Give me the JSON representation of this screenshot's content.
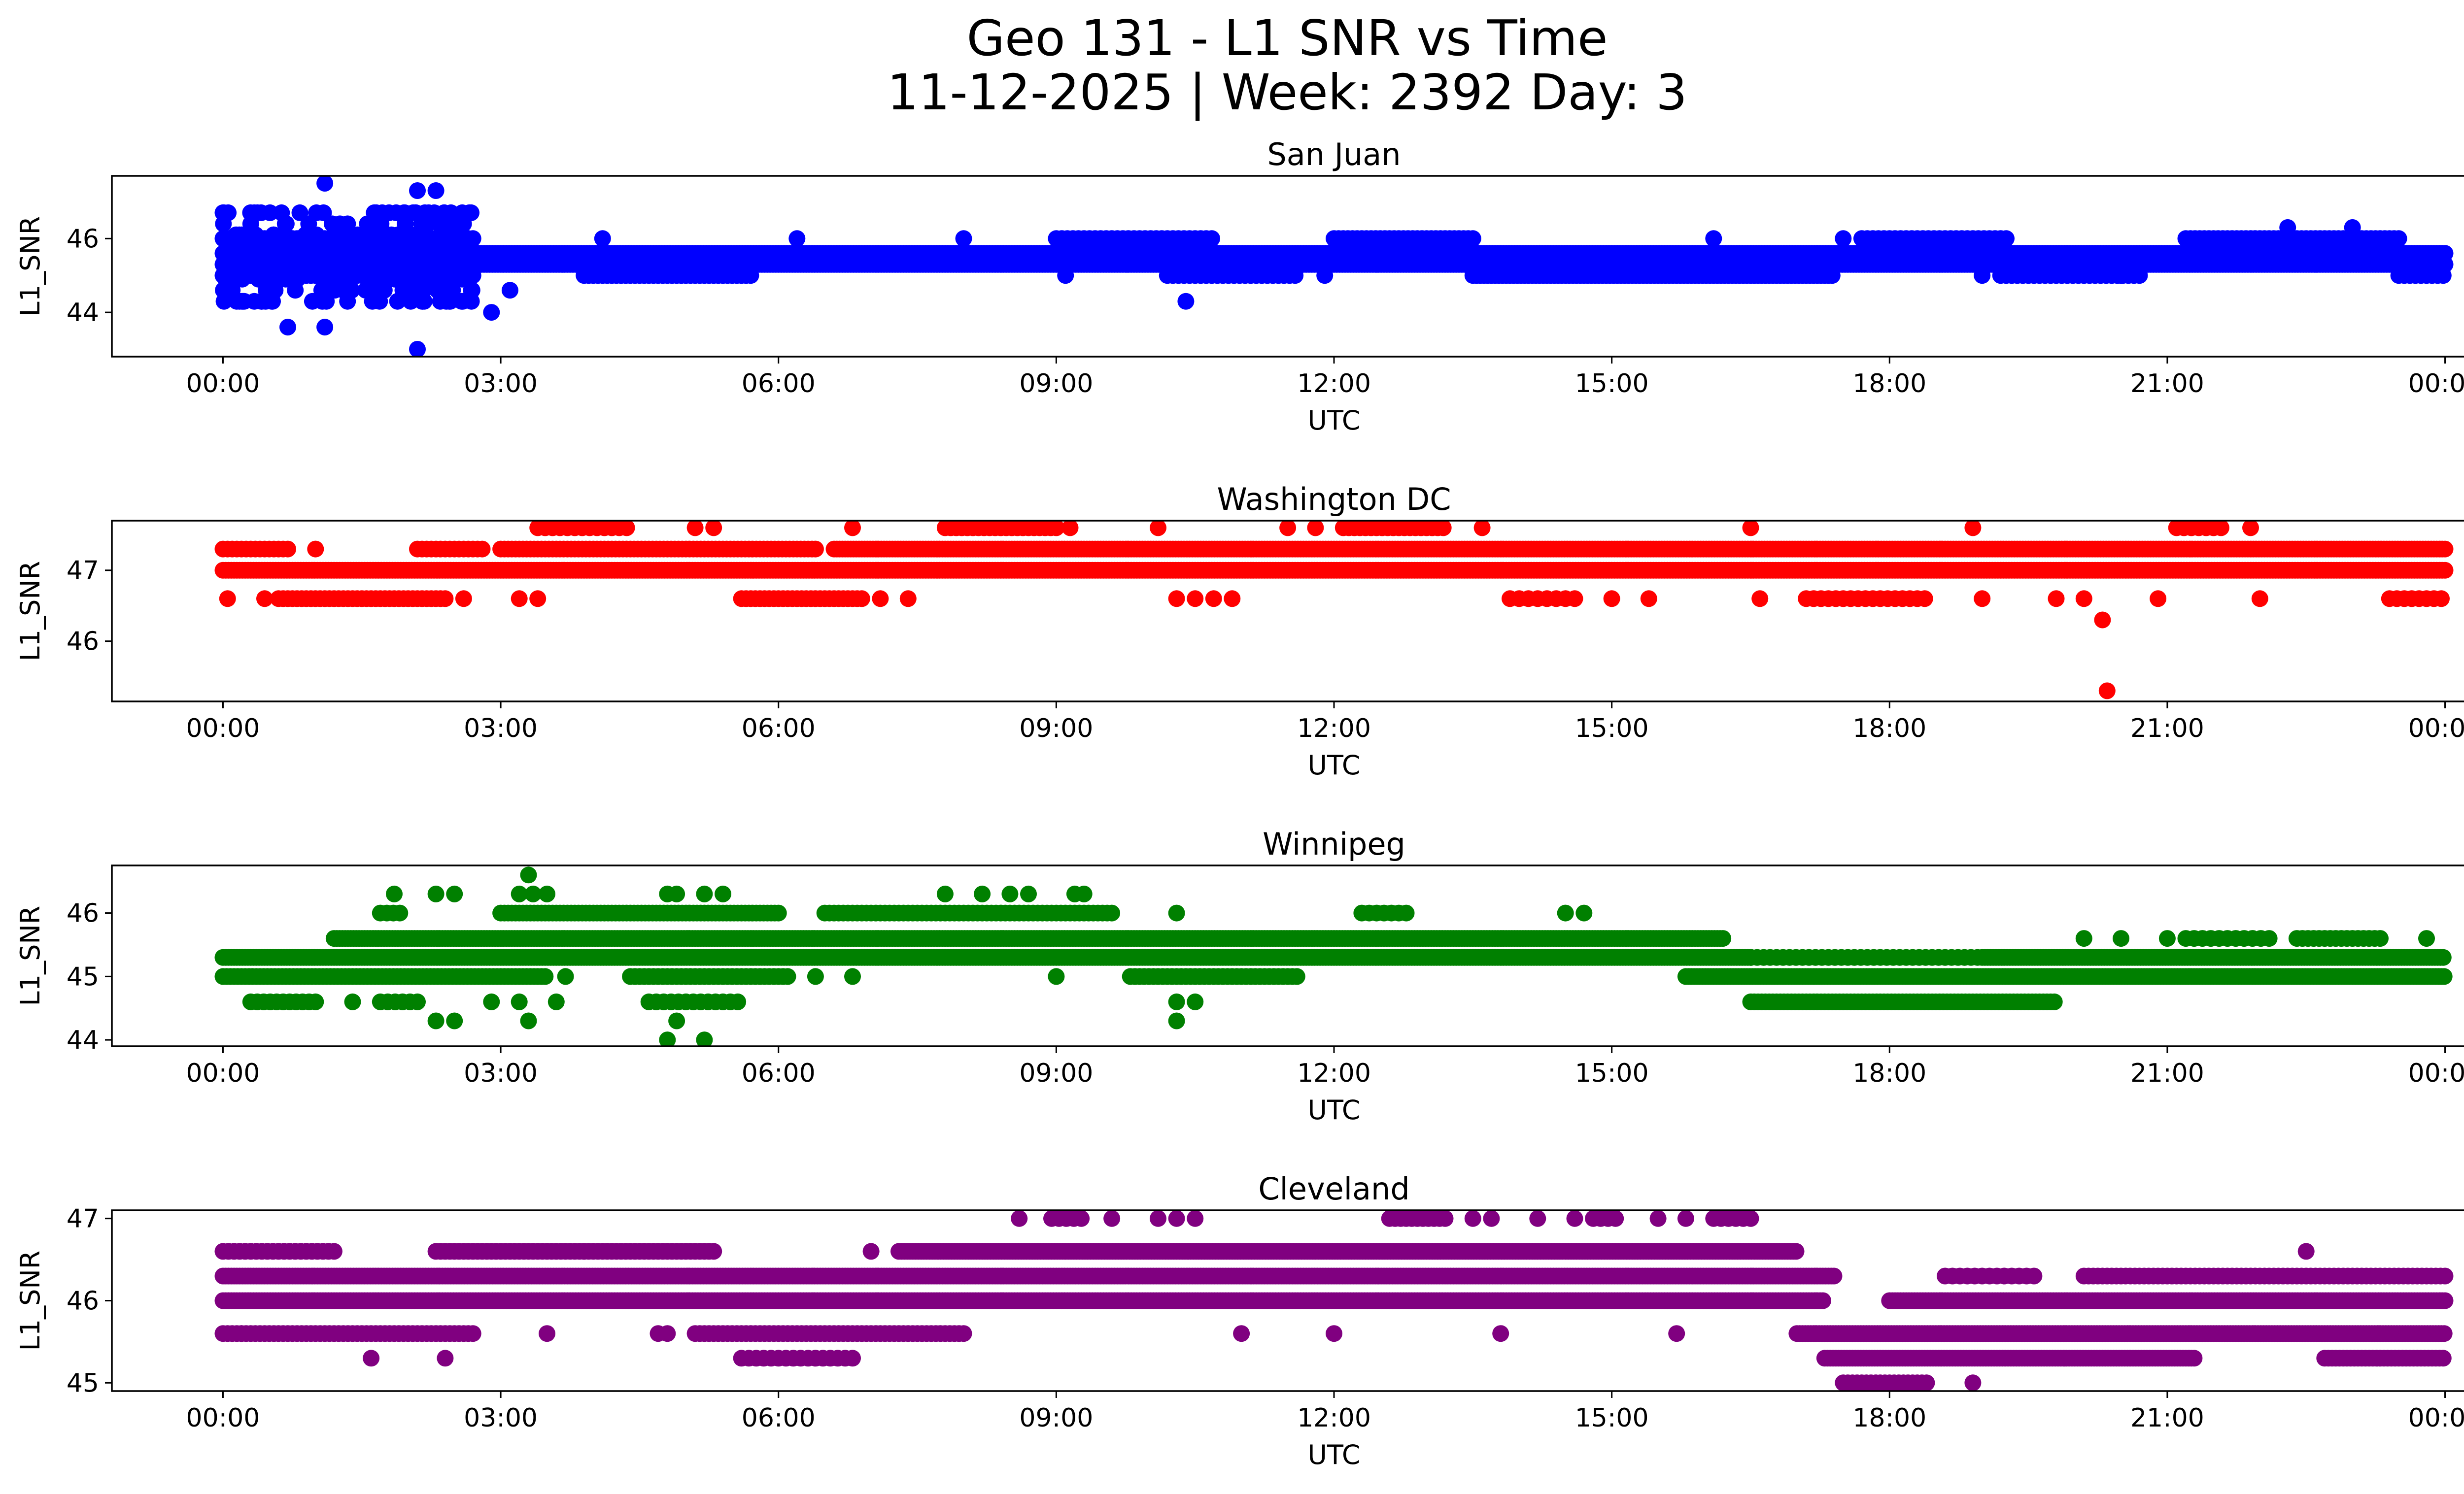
{
  "figure": {
    "title_line1": "Geo 131 - L1 SNR vs Time",
    "title_line2": "11-12-2025 | Week: 2392 Day: 3"
  },
  "chart_data": [
    {
      "type": "scatter",
      "title": "San Juan",
      "xlabel": "UTC",
      "ylabel": "L1_SNR",
      "color": "#0000ff",
      "xlim": [
        -1.2,
        25.2
      ],
      "ylim": [
        42.8,
        47.7
      ],
      "xticks": [
        "00:00",
        "03:00",
        "06:00",
        "09:00",
        "12:00",
        "15:00",
        "18:00",
        "21:00",
        "00:00"
      ],
      "xtick_hours": [
        0,
        3,
        6,
        9,
        12,
        15,
        18,
        21,
        24
      ],
      "yticks": [
        44,
        46
      ],
      "bands": [
        {
          "y": 45.6,
          "start": 0.0,
          "end": 24.0,
          "step": 0.03
        },
        {
          "y": 45.3,
          "start": 0.0,
          "end": 24.0,
          "step": 0.03
        },
        {
          "y": 45.0,
          "start": 0.0,
          "end": 2.7,
          "step": 0.05
        },
        {
          "y": 45.0,
          "start": 3.9,
          "end": 5.7,
          "step": 0.05
        },
        {
          "y": 45.0,
          "start": 10.2,
          "end": 11.6,
          "step": 0.06
        },
        {
          "y": 45.0,
          "start": 13.5,
          "end": 17.4,
          "step": 0.04
        },
        {
          "y": 45.0,
          "start": 19.2,
          "end": 20.7,
          "step": 0.06
        },
        {
          "y": 45.0,
          "start": 23.5,
          "end": 24.0,
          "step": 0.06
        },
        {
          "y": 46.0,
          "start": 0.0,
          "end": 2.7,
          "step": 0.05
        },
        {
          "y": 46.0,
          "start": 9.0,
          "end": 10.7,
          "step": 0.06
        },
        {
          "y": 46.0,
          "start": 12.0,
          "end": 13.5,
          "step": 0.05
        },
        {
          "y": 46.0,
          "start": 17.7,
          "end": 19.3,
          "step": 0.06
        },
        {
          "y": 46.0,
          "start": 21.2,
          "end": 23.5,
          "step": 0.05
        }
      ],
      "clusters": [
        {
          "start": 0.0,
          "end": 2.7,
          "ymin": 44.3,
          "ymax": 46.8,
          "n": 260
        }
      ],
      "points": [
        [
          0.7,
          43.6
        ],
        [
          1.1,
          43.6
        ],
        [
          1.1,
          47.5
        ],
        [
          2.1,
          43.0
        ],
        [
          2.1,
          47.3
        ],
        [
          2.3,
          47.3
        ],
        [
          2.9,
          44.0
        ],
        [
          3.1,
          44.6
        ],
        [
          10.4,
          44.3
        ],
        [
          22.3,
          46.3
        ],
        [
          23.0,
          46.3
        ],
        [
          16.1,
          46.0
        ],
        [
          9.1,
          45.0
        ],
        [
          11.9,
          45.0
        ],
        [
          17.5,
          46.0
        ],
        [
          19.0,
          45.0
        ],
        [
          20.5,
          45.0
        ],
        [
          4.1,
          46.0
        ],
        [
          6.2,
          46.0
        ],
        [
          8.0,
          46.0
        ]
      ]
    },
    {
      "type": "scatter",
      "title": "Washington DC",
      "xlabel": "UTC",
      "ylabel": "L1_SNR",
      "color": "#ff0000",
      "xlim": [
        -1.2,
        25.2
      ],
      "ylim": [
        45.15,
        47.7
      ],
      "xticks": [
        "00:00",
        "03:00",
        "06:00",
        "09:00",
        "12:00",
        "15:00",
        "18:00",
        "21:00",
        "00:00"
      ],
      "xtick_hours": [
        0,
        3,
        6,
        9,
        12,
        15,
        18,
        21,
        24
      ],
      "yticks": [
        46,
        47
      ],
      "bands": [
        {
          "y": 47.0,
          "start": 0.0,
          "end": 24.0,
          "step": 0.03
        },
        {
          "y": 47.3,
          "start": 0.0,
          "end": 0.7,
          "step": 0.05
        },
        {
          "y": 47.3,
          "start": 2.1,
          "end": 2.8,
          "step": 0.05
        },
        {
          "y": 47.3,
          "start": 3.0,
          "end": 6.4,
          "step": 0.04
        },
        {
          "y": 47.3,
          "start": 6.6,
          "end": 24.0,
          "step": 0.03
        },
        {
          "y": 46.6,
          "start": 0.6,
          "end": 2.4,
          "step": 0.05
        },
        {
          "y": 46.6,
          "start": 5.6,
          "end": 6.9,
          "step": 0.05
        },
        {
          "y": 47.6,
          "start": 3.4,
          "end": 4.4,
          "step": 0.08
        },
        {
          "y": 47.6,
          "start": 7.8,
          "end": 9.0,
          "step": 0.06
        },
        {
          "y": 47.6,
          "start": 12.1,
          "end": 13.2,
          "step": 0.06
        },
        {
          "y": 47.6,
          "start": 21.1,
          "end": 21.6,
          "step": 0.08
        },
        {
          "y": 46.6,
          "start": 14.0,
          "end": 14.6,
          "step": 0.1
        },
        {
          "y": 46.6,
          "start": 17.1,
          "end": 18.4,
          "step": 0.08
        },
        {
          "y": 46.6,
          "start": 23.4,
          "end": 24.0,
          "step": 0.08
        }
      ],
      "clusters": [],
      "points": [
        [
          0.05,
          46.6
        ],
        [
          0.45,
          46.6
        ],
        [
          1.0,
          47.3
        ],
        [
          2.6,
          46.6
        ],
        [
          3.2,
          46.6
        ],
        [
          3.4,
          46.6
        ],
        [
          5.1,
          47.6
        ],
        [
          5.3,
          47.6
        ],
        [
          9.15,
          47.6
        ],
        [
          6.8,
          47.6
        ],
        [
          7.1,
          46.6
        ],
        [
          7.4,
          46.6
        ],
        [
          10.1,
          47.6
        ],
        [
          10.3,
          46.6
        ],
        [
          10.5,
          46.6
        ],
        [
          10.7,
          46.6
        ],
        [
          10.9,
          46.6
        ],
        [
          11.5,
          47.6
        ],
        [
          11.8,
          47.6
        ],
        [
          13.6,
          47.6
        ],
        [
          13.9,
          46.6
        ],
        [
          15.0,
          46.6
        ],
        [
          15.4,
          46.6
        ],
        [
          16.5,
          47.6
        ],
        [
          16.6,
          46.6
        ],
        [
          18.9,
          47.6
        ],
        [
          19.0,
          46.6
        ],
        [
          19.8,
          46.6
        ],
        [
          20.1,
          46.6
        ],
        [
          20.3,
          46.3
        ],
        [
          20.35,
          45.3
        ],
        [
          20.9,
          46.6
        ],
        [
          21.9,
          47.6
        ],
        [
          22.0,
          46.6
        ]
      ]
    },
    {
      "type": "scatter",
      "title": "Winnipeg",
      "xlabel": "UTC",
      "ylabel": "L1_SNR",
      "color": "#008000",
      "xlim": [
        -1.2,
        25.2
      ],
      "ylim": [
        43.9,
        46.75
      ],
      "xticks": [
        "00:00",
        "03:00",
        "06:00",
        "09:00",
        "12:00",
        "15:00",
        "18:00",
        "21:00",
        "00:00"
      ],
      "xtick_hours": [
        0,
        3,
        6,
        9,
        12,
        15,
        18,
        21,
        24
      ],
      "yticks": [
        44,
        45,
        46
      ],
      "bands": [
        {
          "y": 45.3,
          "start": 0.0,
          "end": 16.5,
          "step": 0.03
        },
        {
          "y": 45.3,
          "start": 19.0,
          "end": 24.0,
          "step": 0.03
        },
        {
          "y": 45.0,
          "start": 0.0,
          "end": 3.5,
          "step": 0.04
        },
        {
          "y": 45.0,
          "start": 4.4,
          "end": 6.1,
          "step": 0.05
        },
        {
          "y": 45.0,
          "start": 9.8,
          "end": 11.6,
          "step": 0.05
        },
        {
          "y": 45.0,
          "start": 15.8,
          "end": 24.0,
          "step": 0.03
        },
        {
          "y": 45.6,
          "start": 1.2,
          "end": 16.2,
          "step": 0.03
        },
        {
          "y": 46.0,
          "start": 1.7,
          "end": 1.95,
          "step": 0.07
        },
        {
          "y": 46.0,
          "start": 3.0,
          "end": 6.0,
          "step": 0.04
        },
        {
          "y": 46.0,
          "start": 6.5,
          "end": 9.6,
          "step": 0.05
        },
        {
          "y": 46.0,
          "start": 12.3,
          "end": 12.8,
          "step": 0.08
        },
        {
          "y": 44.6,
          "start": 0.3,
          "end": 1.0,
          "step": 0.07
        },
        {
          "y": 44.6,
          "start": 1.7,
          "end": 2.1,
          "step": 0.08
        },
        {
          "y": 44.6,
          "start": 4.6,
          "end": 5.6,
          "step": 0.08
        },
        {
          "y": 44.6,
          "start": 16.5,
          "end": 19.8,
          "step": 0.04
        },
        {
          "y": 45.3,
          "start": 16.5,
          "end": 19.0,
          "step": 0.07
        },
        {
          "y": 45.6,
          "start": 21.2,
          "end": 22.1,
          "step": 0.09
        },
        {
          "y": 45.6,
          "start": 22.4,
          "end": 23.3,
          "step": 0.06
        }
      ],
      "clusters": [],
      "points": [
        [
          1.85,
          46.3
        ],
        [
          2.3,
          46.3
        ],
        [
          2.5,
          46.3
        ],
        [
          3.3,
          46.6
        ],
        [
          3.2,
          46.3
        ],
        [
          3.35,
          46.3
        ],
        [
          3.5,
          46.3
        ],
        [
          4.8,
          46.3
        ],
        [
          4.9,
          46.3
        ],
        [
          5.2,
          46.3
        ],
        [
          5.4,
          46.3
        ],
        [
          7.8,
          46.3
        ],
        [
          8.2,
          46.3
        ],
        [
          8.5,
          46.3
        ],
        [
          8.7,
          46.3
        ],
        [
          9.2,
          46.3
        ],
        [
          9.3,
          46.3
        ],
        [
          2.3,
          44.3
        ],
        [
          2.5,
          44.3
        ],
        [
          3.3,
          44.3
        ],
        [
          4.8,
          44.0
        ],
        [
          5.2,
          44.0
        ],
        [
          4.9,
          44.3
        ],
        [
          10.3,
          44.3
        ],
        [
          10.3,
          44.6
        ],
        [
          10.5,
          44.6
        ],
        [
          10.3,
          46.0
        ],
        [
          14.5,
          46.0
        ],
        [
          14.7,
          46.0
        ],
        [
          9.0,
          45.0
        ],
        [
          6.4,
          45.0
        ],
        [
          6.8,
          45.0
        ],
        [
          3.7,
          45.0
        ],
        [
          2.9,
          44.6
        ],
        [
          3.2,
          44.6
        ],
        [
          3.6,
          44.6
        ],
        [
          1.4,
          44.6
        ],
        [
          20.1,
          45.6
        ],
        [
          20.5,
          45.6
        ],
        [
          23.8,
          45.6
        ],
        [
          21.0,
          45.6
        ]
      ]
    },
    {
      "type": "scatter",
      "title": "Cleveland",
      "xlabel": "UTC",
      "ylabel": "L1_SNR",
      "color": "#800080",
      "xlim": [
        -1.2,
        25.2
      ],
      "ylim": [
        44.9,
        47.1
      ],
      "xticks": [
        "00:00",
        "03:00",
        "06:00",
        "09:00",
        "12:00",
        "15:00",
        "18:00",
        "21:00",
        "00:00"
      ],
      "xtick_hours": [
        0,
        3,
        6,
        9,
        12,
        15,
        18,
        21,
        24
      ],
      "yticks": [
        45,
        46,
        47
      ],
      "bands": [
        {
          "y": 46.0,
          "start": 0.0,
          "end": 17.3,
          "step": 0.03
        },
        {
          "y": 46.0,
          "start": 18.0,
          "end": 24.0,
          "step": 0.03
        },
        {
          "y": 46.3,
          "start": 0.0,
          "end": 17.4,
          "step": 0.03
        },
        {
          "y": 46.3,
          "start": 18.6,
          "end": 19.6,
          "step": 0.08
        },
        {
          "y": 46.3,
          "start": 20.1,
          "end": 24.0,
          "step": 0.05
        },
        {
          "y": 46.6,
          "start": 0.0,
          "end": 1.2,
          "step": 0.06
        },
        {
          "y": 46.6,
          "start": 2.3,
          "end": 5.3,
          "step": 0.05
        },
        {
          "y": 46.6,
          "start": 7.3,
          "end": 17.0,
          "step": 0.03
        },
        {
          "y": 45.6,
          "start": 0.0,
          "end": 2.7,
          "step": 0.05
        },
        {
          "y": 45.6,
          "start": 5.1,
          "end": 8.0,
          "step": 0.05
        },
        {
          "y": 45.6,
          "start": 17.0,
          "end": 24.0,
          "step": 0.03
        },
        {
          "y": 45.3,
          "start": 17.3,
          "end": 21.3,
          "step": 0.03
        },
        {
          "y": 45.3,
          "start": 22.7,
          "end": 24.0,
          "step": 0.04
        },
        {
          "y": 45.3,
          "start": 5.6,
          "end": 6.8,
          "step": 0.08
        },
        {
          "y": 45.0,
          "start": 17.5,
          "end": 18.4,
          "step": 0.05
        },
        {
          "y": 47.0,
          "start": 8.95,
          "end": 9.3,
          "step": 0.08
        },
        {
          "y": 47.0,
          "start": 12.6,
          "end": 13.2,
          "step": 0.06
        },
        {
          "y": 47.0,
          "start": 14.8,
          "end": 15.1,
          "step": 0.08
        },
        {
          "y": 47.0,
          "start": 16.1,
          "end": 16.5,
          "step": 0.08
        }
      ],
      "clusters": [],
      "points": [
        [
          1.6,
          45.3
        ],
        [
          2.4,
          45.3
        ],
        [
          8.6,
          47.0
        ],
        [
          9.6,
          47.0
        ],
        [
          10.1,
          47.0
        ],
        [
          10.3,
          47.0
        ],
        [
          10.5,
          47.0
        ],
        [
          13.5,
          47.0
        ],
        [
          13.7,
          47.0
        ],
        [
          14.2,
          47.0
        ],
        [
          14.6,
          47.0
        ],
        [
          15.5,
          47.0
        ],
        [
          15.8,
          47.0
        ],
        [
          18.9,
          45.0
        ],
        [
          22.5,
          46.6
        ],
        [
          11.0,
          45.6
        ],
        [
          12.0,
          45.6
        ],
        [
          13.8,
          45.6
        ],
        [
          15.7,
          45.6
        ],
        [
          0.2,
          45.6
        ],
        [
          3.5,
          45.6
        ],
        [
          4.7,
          45.6
        ],
        [
          4.8,
          45.6
        ],
        [
          7.0,
          46.6
        ],
        [
          3.9,
          46.6
        ]
      ]
    }
  ]
}
